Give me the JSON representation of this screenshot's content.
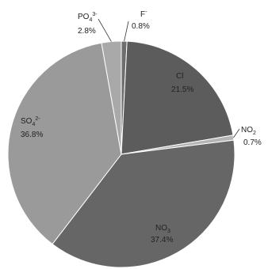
{
  "chart_data": {
    "type": "pie",
    "title": "",
    "start_angle_deg": 0,
    "direction": "clockwise",
    "slices": [
      {
        "name": "F",
        "sup": "-",
        "value": 0.8,
        "label": "0.8%",
        "color": "#6e6e6e"
      },
      {
        "name": "Cl",
        "sup": "",
        "value": 21.5,
        "label": "21.5%",
        "color": "#5c5c5c"
      },
      {
        "name": "NO",
        "sub": "2",
        "value": 0.7,
        "label": "0.7%",
        "color": "#b5b5b5"
      },
      {
        "name": "NO",
        "sub": "3",
        "value": 37.4,
        "label": "37.4%",
        "color": "#666666"
      },
      {
        "name": "SO",
        "sub": "4",
        "sup": "2-",
        "value": 36.8,
        "label": "36.8%",
        "color": "#9a9a9a"
      },
      {
        "name": "PO",
        "sub": "4",
        "sup": "3-",
        "value": 2.8,
        "label": "2.8%",
        "color": "#a9a9a9"
      }
    ]
  }
}
